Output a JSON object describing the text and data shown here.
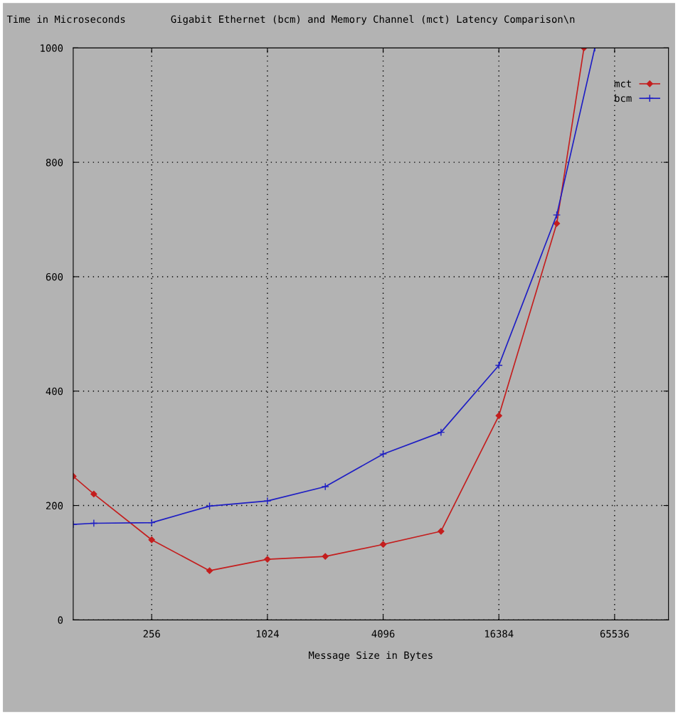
{
  "chart_data": {
    "type": "line",
    "title": "Gigabit Ethernet (bcm) and Memory Channel (mct) Latency Comparison\\n",
    "xlabel": "Message Size in Bytes",
    "ylabel": "Time in Microseconds",
    "log": "x",
    "xlim": [
      100,
      125000
    ],
    "xticks": [
      256,
      1024,
      4096,
      16384,
      65536
    ],
    "ylim": [
      0,
      1000
    ],
    "yticks": [
      0,
      200,
      400,
      600,
      800,
      1000
    ],
    "grid": true,
    "legend": "top right",
    "series": [
      {
        "name": "mct",
        "color": "#c41e1e",
        "marker": "diamond",
        "x": [
          100,
          128,
          256,
          512,
          1024,
          2048,
          4096,
          8192,
          16384,
          32768,
          45400
        ],
        "values": [
          251,
          220,
          140,
          86,
          106,
          111,
          132,
          155,
          357,
          693,
          1000
        ]
      },
      {
        "name": "bcm",
        "color": "#1e1ec4",
        "marker": "cross",
        "x": [
          100,
          128,
          256,
          512,
          1024,
          2048,
          4096,
          8192,
          16384,
          32768,
          51700
        ],
        "values": [
          167,
          169,
          170,
          199,
          208,
          233,
          290,
          328,
          445,
          708,
          1000
        ]
      }
    ]
  }
}
